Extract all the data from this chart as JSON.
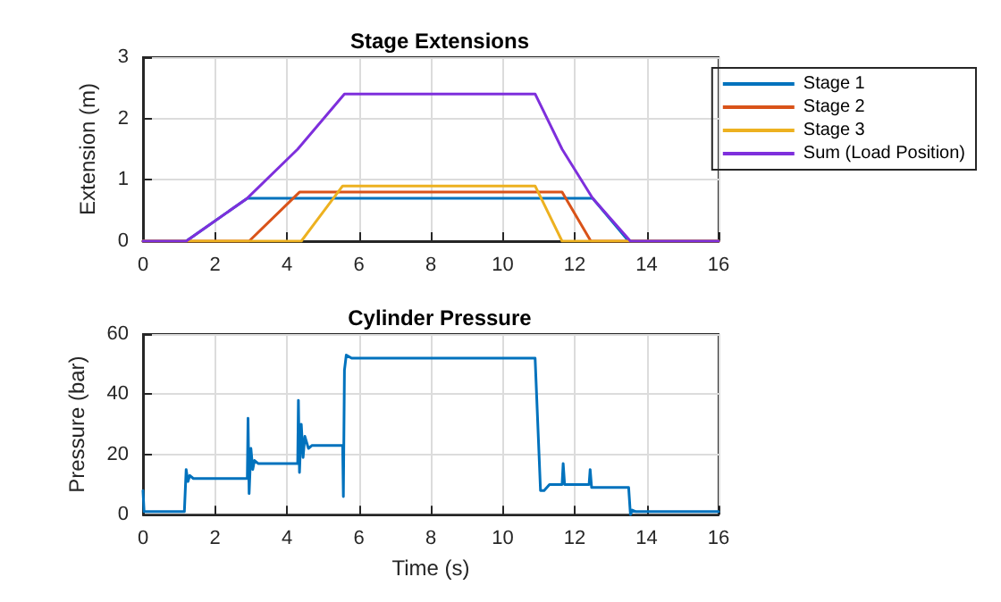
{
  "chart_data": [
    {
      "type": "line",
      "title": "Stage Extensions",
      "ylabel": "Extension (m)",
      "xlim": [
        0,
        16
      ],
      "xticks": [
        0,
        2,
        4,
        6,
        8,
        10,
        12,
        14,
        16
      ],
      "ylim": [
        0,
        3
      ],
      "yticks": [
        0,
        1,
        2,
        3
      ],
      "grid": true,
      "legend": "right",
      "marker": "none",
      "line_style": "solid",
      "series": [
        {
          "name": "Stage 1",
          "color": "#0072bd",
          "x": [
            0,
            1.2,
            2.9,
            12.5,
            13.5,
            16
          ],
          "values": [
            0,
            0,
            0.7,
            0.7,
            0,
            0
          ]
        },
        {
          "name": "Stage 2",
          "color": "#d95319",
          "x": [
            0,
            2.95,
            4.35,
            11.65,
            12.45,
            16
          ],
          "values": [
            0,
            0,
            0.8,
            0.8,
            0,
            0
          ]
        },
        {
          "name": "Stage 3",
          "color": "#edb120",
          "x": [
            0,
            4.4,
            5.55,
            10.9,
            11.65,
            16
          ],
          "values": [
            0,
            0,
            0.9,
            0.9,
            0,
            0
          ]
        },
        {
          "name": "Sum (Load Position)",
          "color": "#7e2fdc",
          "x": [
            0,
            1.2,
            2.9,
            4.3,
            5.6,
            10.9,
            11.65,
            12.5,
            13.55,
            16
          ],
          "values": [
            0,
            0,
            0.7,
            1.5,
            2.4,
            2.4,
            1.5,
            0.7,
            0,
            0
          ]
        }
      ]
    },
    {
      "type": "line",
      "title": "Cylinder Pressure",
      "xlabel": "Time (s)",
      "ylabel": "Pressure (bar)",
      "xlim": [
        0,
        16
      ],
      "xticks": [
        0,
        2,
        4,
        6,
        8,
        10,
        12,
        14,
        16
      ],
      "ylim": [
        0,
        60
      ],
      "yticks": [
        0,
        20,
        40,
        60
      ],
      "grid": true,
      "marker": "none",
      "line_style": "solid",
      "series": [
        {
          "color": "#0072bd",
          "x": [
            0,
            0.03,
            1.15,
            1.2,
            1.25,
            1.3,
            1.4,
            2.9,
            2.92,
            2.95,
            3.0,
            3.05,
            3.1,
            3.2,
            4.3,
            4.32,
            4.35,
            4.4,
            4.45,
            4.5,
            4.6,
            4.7,
            5.55,
            5.57,
            5.6,
            5.65,
            5.8,
            10.9,
            11.05,
            11.15,
            11.3,
            11.65,
            11.68,
            11.72,
            12.4,
            12.43,
            12.47,
            13.5,
            13.55,
            13.6,
            13.7,
            16
          ],
          "values": [
            8,
            1,
            1,
            15,
            11,
            13,
            12,
            12,
            32,
            7,
            22,
            15,
            18,
            17,
            17,
            38,
            14,
            30,
            19,
            26,
            22,
            23,
            23,
            6,
            48,
            53,
            52,
            52,
            8,
            8,
            10,
            10,
            17,
            10,
            10,
            15,
            9,
            9,
            0,
            1.5,
            1,
            1
          ]
        }
      ]
    }
  ]
}
